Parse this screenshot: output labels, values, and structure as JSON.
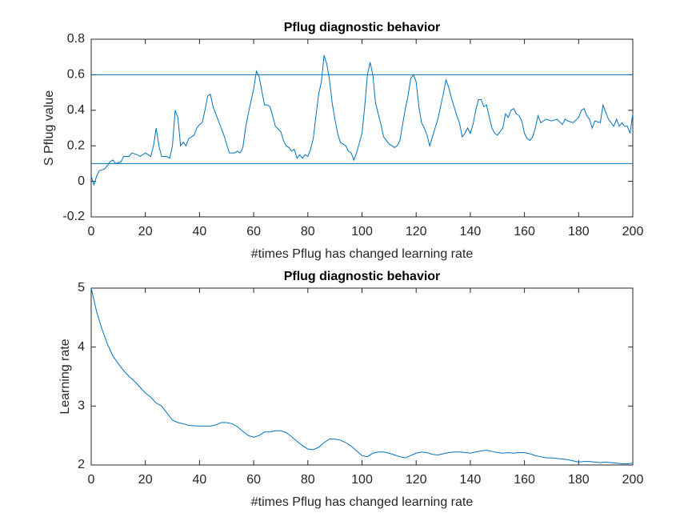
{
  "chart_data": [
    {
      "type": "line",
      "title": "Pflug diagnostic behavior",
      "xlabel": "#times Pflug has changed learning rate",
      "ylabel": "S Pflug value",
      "xlim": [
        0,
        200
      ],
      "xticks": [
        0,
        20,
        40,
        60,
        80,
        100,
        120,
        140,
        160,
        180,
        200
      ],
      "ylim": [
        -0.2,
        0.8
      ],
      "yticks": [
        -0.2,
        0,
        0.2,
        0.4,
        0.6,
        0.8
      ],
      "hlines": [
        0.6,
        0.1
      ],
      "hline_color": "#0072bd",
      "grid": false,
      "box": true,
      "series": [
        {
          "color": "#0072bd",
          "x": [
            0,
            1,
            2,
            3,
            5,
            7,
            8,
            9,
            11,
            12,
            14,
            15,
            17,
            18,
            20,
            22,
            23,
            24,
            25,
            26,
            28,
            29,
            30,
            31,
            32,
            33,
            34,
            35,
            36,
            38,
            39,
            40,
            41,
            42,
            43,
            44,
            45,
            46,
            47,
            48,
            49,
            50,
            51,
            53,
            54,
            55,
            56,
            57,
            58,
            59,
            60,
            61,
            62,
            63,
            64,
            65,
            66,
            67,
            68,
            70,
            71,
            72,
            73,
            74,
            75,
            76,
            77,
            78,
            79,
            80,
            81,
            82,
            83,
            84,
            85,
            86,
            87,
            88,
            89,
            90,
            91,
            92,
            94,
            95,
            96,
            97,
            98,
            100,
            101,
            102,
            103,
            104,
            105,
            106,
            107,
            108,
            110,
            111,
            112,
            113,
            114,
            115,
            116,
            117,
            118,
            119,
            120,
            121,
            122,
            123,
            124,
            125,
            126,
            127,
            128,
            129,
            130,
            131,
            132,
            133,
            134,
            135,
            136,
            137,
            138,
            139,
            140,
            141,
            142,
            143,
            144,
            145,
            146,
            147,
            148,
            149,
            150,
            151,
            152,
            153,
            154,
            155,
            156,
            157,
            158,
            159,
            160,
            161,
            162,
            163,
            164,
            165,
            166,
            167,
            168,
            170,
            172,
            174,
            175,
            176,
            178,
            180,
            181,
            182,
            183,
            184,
            185,
            186,
            188,
            189,
            190,
            191,
            192,
            193,
            194,
            195,
            196,
            197,
            198,
            199,
            200
          ],
          "values": [
            0.03,
            -0.02,
            0.03,
            0.06,
            0.07,
            0.11,
            0.12,
            0.1,
            0.11,
            0.14,
            0.14,
            0.16,
            0.15,
            0.14,
            0.16,
            0.14,
            0.2,
            0.3,
            0.2,
            0.14,
            0.14,
            0.13,
            0.2,
            0.4,
            0.36,
            0.2,
            0.22,
            0.2,
            0.24,
            0.26,
            0.3,
            0.32,
            0.33,
            0.4,
            0.48,
            0.49,
            0.42,
            0.38,
            0.34,
            0.3,
            0.26,
            0.21,
            0.16,
            0.16,
            0.17,
            0.16,
            0.19,
            0.3,
            0.38,
            0.45,
            0.52,
            0.62,
            0.59,
            0.51,
            0.43,
            0.43,
            0.42,
            0.37,
            0.31,
            0.28,
            0.23,
            0.2,
            0.19,
            0.17,
            0.18,
            0.13,
            0.15,
            0.13,
            0.15,
            0.14,
            0.18,
            0.24,
            0.37,
            0.49,
            0.56,
            0.71,
            0.66,
            0.57,
            0.44,
            0.35,
            0.27,
            0.22,
            0.2,
            0.17,
            0.16,
            0.12,
            0.16,
            0.27,
            0.42,
            0.6,
            0.67,
            0.6,
            0.44,
            0.38,
            0.32,
            0.25,
            0.21,
            0.2,
            0.19,
            0.2,
            0.23,
            0.32,
            0.41,
            0.48,
            0.58,
            0.6,
            0.56,
            0.42,
            0.33,
            0.3,
            0.26,
            0.2,
            0.25,
            0.3,
            0.35,
            0.42,
            0.49,
            0.57,
            0.53,
            0.47,
            0.42,
            0.37,
            0.33,
            0.25,
            0.27,
            0.3,
            0.27,
            0.32,
            0.4,
            0.46,
            0.46,
            0.42,
            0.43,
            0.36,
            0.3,
            0.27,
            0.26,
            0.28,
            0.3,
            0.38,
            0.36,
            0.4,
            0.41,
            0.38,
            0.37,
            0.34,
            0.27,
            0.24,
            0.23,
            0.25,
            0.3,
            0.37,
            0.33,
            0.34,
            0.35,
            0.34,
            0.35,
            0.32,
            0.35,
            0.34,
            0.33,
            0.36,
            0.4,
            0.41,
            0.37,
            0.35,
            0.3,
            0.34,
            0.33,
            0.43,
            0.39,
            0.35,
            0.33,
            0.31,
            0.35,
            0.31,
            0.33,
            0.31,
            0.31,
            0.27,
            0.38
          ]
        }
      ]
    },
    {
      "type": "line",
      "title": "Pflug diagnostic behavior",
      "xlabel": "#times Pflug has changed learning rate",
      "ylabel": "Learning rate",
      "xlim": [
        0,
        200
      ],
      "xticks": [
        0,
        20,
        40,
        60,
        80,
        100,
        120,
        140,
        160,
        180,
        200
      ],
      "ylim": [
        2,
        5
      ],
      "yticks": [
        2,
        3,
        4,
        5
      ],
      "grid": false,
      "box": true,
      "series": [
        {
          "color": "#0072bd",
          "x": [
            0,
            2,
            4,
            6,
            8,
            10,
            12,
            14,
            16,
            18,
            20,
            22,
            24,
            26,
            28,
            30,
            32,
            34,
            36,
            40,
            44,
            46,
            48,
            50,
            52,
            54,
            56,
            58,
            60,
            62,
            64,
            66,
            68,
            70,
            72,
            74,
            76,
            78,
            80,
            82,
            84,
            86,
            88,
            90,
            92,
            94,
            96,
            98,
            100,
            102,
            104,
            106,
            108,
            110,
            112,
            114,
            116,
            118,
            120,
            122,
            124,
            126,
            128,
            130,
            132,
            134,
            136,
            138,
            140,
            142,
            144,
            146,
            148,
            150,
            152,
            154,
            156,
            158,
            160,
            162,
            164,
            166,
            168,
            170,
            172,
            174,
            176,
            178,
            180,
            182,
            184,
            186,
            188,
            190,
            192,
            194,
            196,
            198,
            200
          ],
          "values": [
            5.0,
            4.6,
            4.3,
            4.05,
            3.85,
            3.72,
            3.6,
            3.5,
            3.42,
            3.32,
            3.22,
            3.15,
            3.05,
            3.0,
            2.88,
            2.76,
            2.72,
            2.7,
            2.67,
            2.66,
            2.66,
            2.68,
            2.72,
            2.72,
            2.7,
            2.65,
            2.57,
            2.5,
            2.47,
            2.5,
            2.56,
            2.56,
            2.58,
            2.58,
            2.55,
            2.48,
            2.4,
            2.33,
            2.27,
            2.26,
            2.3,
            2.38,
            2.44,
            2.44,
            2.42,
            2.38,
            2.32,
            2.24,
            2.16,
            2.14,
            2.2,
            2.22,
            2.22,
            2.2,
            2.17,
            2.14,
            2.12,
            2.16,
            2.2,
            2.22,
            2.21,
            2.18,
            2.17,
            2.19,
            2.21,
            2.22,
            2.22,
            2.21,
            2.2,
            2.22,
            2.24,
            2.25,
            2.23,
            2.21,
            2.2,
            2.21,
            2.2,
            2.21,
            2.21,
            2.19,
            2.16,
            2.14,
            2.12,
            2.12,
            2.11,
            2.1,
            2.09,
            2.07,
            2.05,
            2.06,
            2.06,
            2.05,
            2.04,
            2.05,
            2.04,
            2.03,
            2.02,
            2.02,
            2.03
          ]
        }
      ]
    }
  ]
}
